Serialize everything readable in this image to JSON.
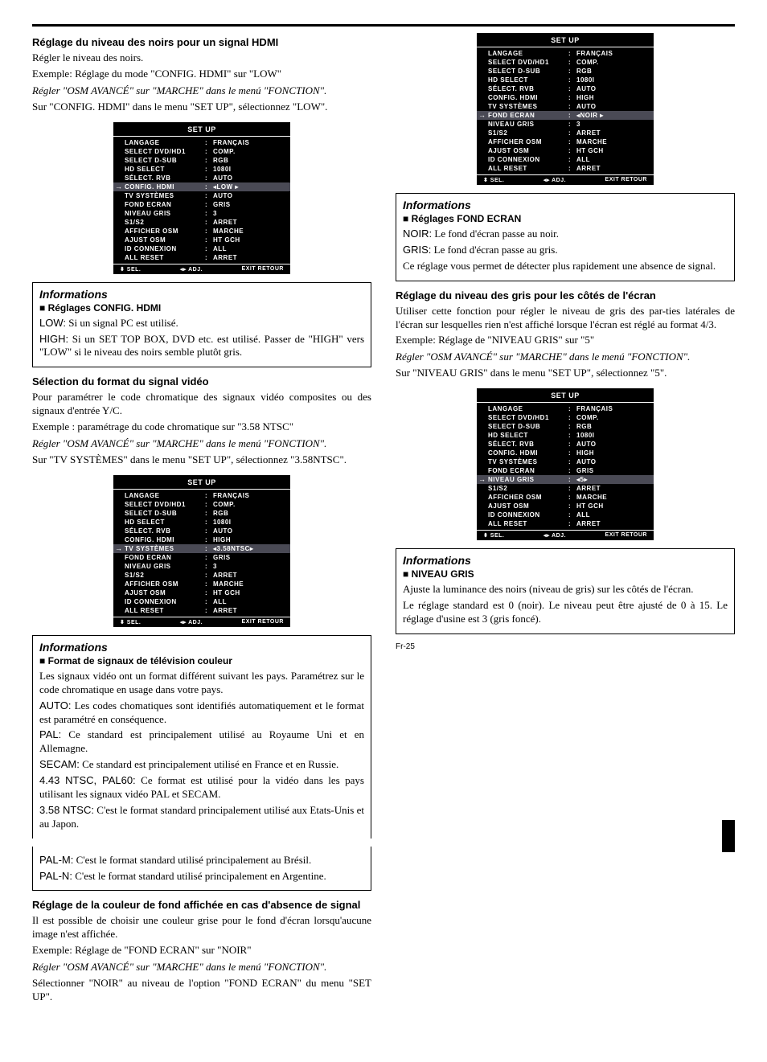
{
  "pageNumber": "Fr-25",
  "menuTitle": "SET UP",
  "footer": {
    "sel": "⬍ SEL.",
    "adj": "◂▸ ADJ.",
    "exit": "EXIT RETOUR"
  },
  "s1": {
    "heading": "Réglage du niveau des noirs pour un signal HDMI",
    "p1": "Régler le niveau des noirs.",
    "p2": "Exemple: Réglage du mode \"CONFIG. HDMI\" sur \"LOW\"",
    "ital": "Régler \"OSM AVANCÉ\" sur \"MARCHE\" dans le menú \"FONCTION\".",
    "p3": "Sur \"CONFIG. HDMI\" dans le menu \"SET UP\", sélectionnez \"LOW\".",
    "menu": [
      {
        "k": "LANGAGE",
        "v": "FRANÇAIS"
      },
      {
        "k": "SELECT DVD/HD1",
        "v": "COMP."
      },
      {
        "k": "SELECT D-SUB",
        "v": "RGB"
      },
      {
        "k": "HD SELECT",
        "v": "1080I"
      },
      {
        "k": "SÉLECT. RVB",
        "v": "AUTO"
      },
      {
        "k": "CONFIG. HDMI",
        "v": "◂LOW ▸",
        "sel": true
      },
      {
        "k": "TV SYSTÈMES",
        "v": "AUTO"
      },
      {
        "k": "FOND ECRAN",
        "v": "GRIS"
      },
      {
        "k": "NIVEAU GRIS",
        "v": "3"
      },
      {
        "k": "S1/S2",
        "v": "ARRET"
      },
      {
        "k": "AFFICHER OSM",
        "v": "MARCHE"
      },
      {
        "k": "AJUST OSM",
        "v": "HT GCH"
      },
      {
        "k": "ID CONNEXION",
        "v": "ALL"
      },
      {
        "k": "ALL RESET",
        "v": "ARRET"
      }
    ]
  },
  "info1": {
    "head": "Informations",
    "sub": "■ Réglages CONFIG. HDMI",
    "l1l": "LOW:",
    "l1t": " Si un signal PC est utilisé.",
    "l2l": "HIGH:",
    "l2t": " Si un SET TOP BOX, DVD etc. est utilisé. Passer de \"HIGH\" vers \"LOW\" si le niveau des noirs semble plutôt gris."
  },
  "s2": {
    "heading": "Sélection du format du signal vidéo",
    "p1": "Pour paramétrer le code chromatique des signaux vidéo composites ou des signaux d'entrée Y/C.",
    "p2": "Exemple : paramétrage du code chromatique sur \"3.58 NTSC\"",
    "ital": "Régler \"OSM AVANCÉ\" sur \"MARCHE\" dans le menú \"FONCTION\".",
    "p3": "Sur \"TV SYSTÈMES\" dans le menu \"SET UP\", sélectionnez \"3.58NTSC\".",
    "menu": [
      {
        "k": "LANGAGE",
        "v": "FRANÇAIS"
      },
      {
        "k": "SELECT DVD/HD1",
        "v": "COMP."
      },
      {
        "k": "SELECT D-SUB",
        "v": "RGB"
      },
      {
        "k": "HD SELECT",
        "v": "1080I"
      },
      {
        "k": "SÉLECT. RVB",
        "v": "AUTO"
      },
      {
        "k": "CONFIG. HDMI",
        "v": "HIGH"
      },
      {
        "k": "TV SYSTÈMES",
        "v": "◂3.58NTSC▸",
        "sel": true
      },
      {
        "k": "FOND ECRAN",
        "v": "GRIS"
      },
      {
        "k": "NIVEAU GRIS",
        "v": "3"
      },
      {
        "k": "S1/S2",
        "v": "ARRET"
      },
      {
        "k": "AFFICHER OSM",
        "v": "MARCHE"
      },
      {
        "k": "AJUST OSM",
        "v": "HT GCH"
      },
      {
        "k": "ID CONNEXION",
        "v": "ALL"
      },
      {
        "k": "ALL RESET",
        "v": "ARRET"
      }
    ]
  },
  "info2": {
    "head": "Informations",
    "sub": "■ Format de signaux de télévision couleur",
    "p1": "Les signaux vidéo ont un format différent suivant les pays. Paramétrez sur le code chromatique en usage dans votre pays.",
    "l1l": "AUTO:",
    "l1t": " Les codes chomatiques sont identifiés automatiquement et le format est paramétré en conséquence.",
    "l2l": "PAL:",
    "l2t": " Ce standard est principalement utilisé au Royaume Uni et en Allemagne.",
    "l3l": "SECAM:",
    "l3t": " Ce standard est principalement utilisé en France et en Russie.",
    "l4l": "4.43 NTSC, PAL60:",
    "l4t": " Ce format est utilisé pour la vidéo dans les pays utilisant les signaux vidéo PAL et SECAM.",
    "l5l": "3.58 NTSC:",
    "l5t": " C'est le format standard principalement utilisé aux Etats-Unis et au Japon.",
    "l6l": "PAL-M:",
    "l6t": " C'est le format standard utilisé principalement au Brésil.",
    "l7l": "PAL-N:",
    "l7t": " C'est le format standard utilisé principalement en Argentine."
  },
  "s3": {
    "heading": "Réglage de la couleur de fond affichée en cas d'absence de signal",
    "p1": "Il est possible de choisir une couleur grise pour le fond d'écran lorsqu'aucune image n'est affichée.",
    "p2": "Exemple: Réglage de \"FOND ECRAN\" sur \"NOIR\"",
    "ital": "Régler \"OSM AVANCÉ\" sur \"MARCHE\" dans le menú \"FONCTION\".",
    "p3": "Sélectionner \"NOIR\" au niveau de l'option \"FOND ECRAN\" du menu \"SET UP\".",
    "menu": [
      {
        "k": "LANGAGE",
        "v": "FRANÇAIS"
      },
      {
        "k": "SELECT DVD/HD1",
        "v": "COMP."
      },
      {
        "k": "SELECT D-SUB",
        "v": "RGB"
      },
      {
        "k": "HD SELECT",
        "v": "1080I"
      },
      {
        "k": "SÉLECT. RVB",
        "v": "AUTO"
      },
      {
        "k": "CONFIG. HDMI",
        "v": "HIGH"
      },
      {
        "k": "TV SYSTÈMES",
        "v": "AUTO"
      },
      {
        "k": "FOND ECRAN",
        "v": "◂NOIR ▸",
        "sel": true
      },
      {
        "k": "NIVEAU GRIS",
        "v": "3"
      },
      {
        "k": "S1/S2",
        "v": "ARRET"
      },
      {
        "k": "AFFICHER OSM",
        "v": "MARCHE"
      },
      {
        "k": "AJUST OSM",
        "v": "HT GCH"
      },
      {
        "k": "ID CONNEXION",
        "v": "ALL"
      },
      {
        "k": "ALL RESET",
        "v": "ARRET"
      }
    ]
  },
  "info3": {
    "head": "Informations",
    "sub": "■ Réglages FOND ECRAN",
    "l1l": "NOIR:",
    "l1t": " Le fond d'écran passe au noir.",
    "l2l": "GRIS:",
    "l2t": " Le fond d'écran passe au gris.",
    "p1": "Ce réglage vous permet de détecter plus rapidement une absence de signal."
  },
  "s4": {
    "heading": "Réglage du niveau des gris pour les côtés de l'écran",
    "p1": "Utiliser cette fonction pour régler le niveau de gris des par-ties latérales de l'écran sur lesquelles rien n'est affiché lorsque l'écran est réglé au format 4/3.",
    "p2": "Exemple: Réglage de \"NIVEAU GRIS\" sur \"5\"",
    "ital": "Régler \"OSM AVANCÉ\" sur \"MARCHE\" dans le menú \"FONCTION\".",
    "p3": "Sur \"NIVEAU GRIS\" dans le menu \"SET UP\", sélectionnez \"5\".",
    "menu": [
      {
        "k": "LANGAGE",
        "v": "FRANÇAIS"
      },
      {
        "k": "SELECT DVD/HD1",
        "v": "COMP."
      },
      {
        "k": "SELECT D-SUB",
        "v": "RGB"
      },
      {
        "k": "HD SELECT",
        "v": "1080I"
      },
      {
        "k": "SÉLECT. RVB",
        "v": "AUTO"
      },
      {
        "k": "CONFIG. HDMI",
        "v": "HIGH"
      },
      {
        "k": "TV SYSTÈMES",
        "v": "AUTO"
      },
      {
        "k": "FOND ECRAN",
        "v": "GRIS"
      },
      {
        "k": "NIVEAU GRIS",
        "v": "◂5▸",
        "sel": true
      },
      {
        "k": "S1/S2",
        "v": "ARRET"
      },
      {
        "k": "AFFICHER OSM",
        "v": "MARCHE"
      },
      {
        "k": "AJUST OSM",
        "v": "HT GCH"
      },
      {
        "k": "ID CONNEXION",
        "v": "ALL"
      },
      {
        "k": "ALL RESET",
        "v": "ARRET"
      }
    ]
  },
  "info4": {
    "head": "Informations",
    "sub": "■ NIVEAU GRIS",
    "p1": "Ajuste la luminance des noirs (niveau de gris) sur les côtés de l'écran.",
    "p2": "Le réglage standard est 0 (noir). Le niveau peut être ajusté de 0 à 15. Le réglage d'usine est 3 (gris foncé)."
  }
}
